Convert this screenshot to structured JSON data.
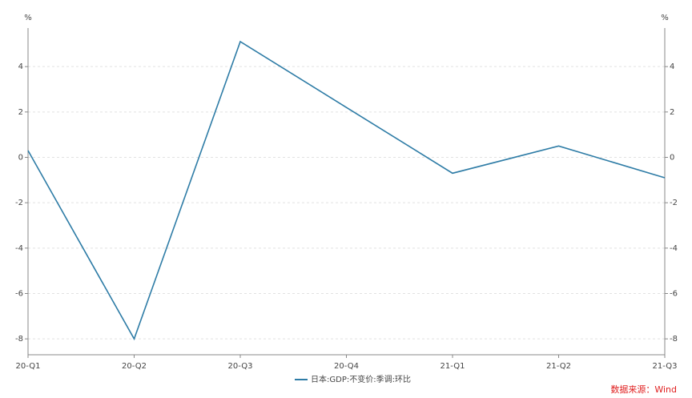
{
  "chart_data": {
    "type": "line",
    "y_unit": "%",
    "categories": [
      "20-Q1",
      "20-Q2",
      "20-Q3",
      "20-Q4",
      "21-Q1",
      "21-Q2",
      "21-Q3"
    ],
    "series": [
      {
        "name": "日本:GDP:不变价:季调:环比",
        "color": "#2e7ca6",
        "values": [
          0.3,
          -8.0,
          5.1,
          2.2,
          -0.7,
          0.5,
          -0.9
        ]
      }
    ],
    "ylim": [
      -8.7,
      5.7
    ],
    "yticks": [
      -8,
      -6,
      -4,
      -2,
      0,
      2,
      4
    ],
    "grid": true,
    "source": "数据来源：Wind"
  }
}
